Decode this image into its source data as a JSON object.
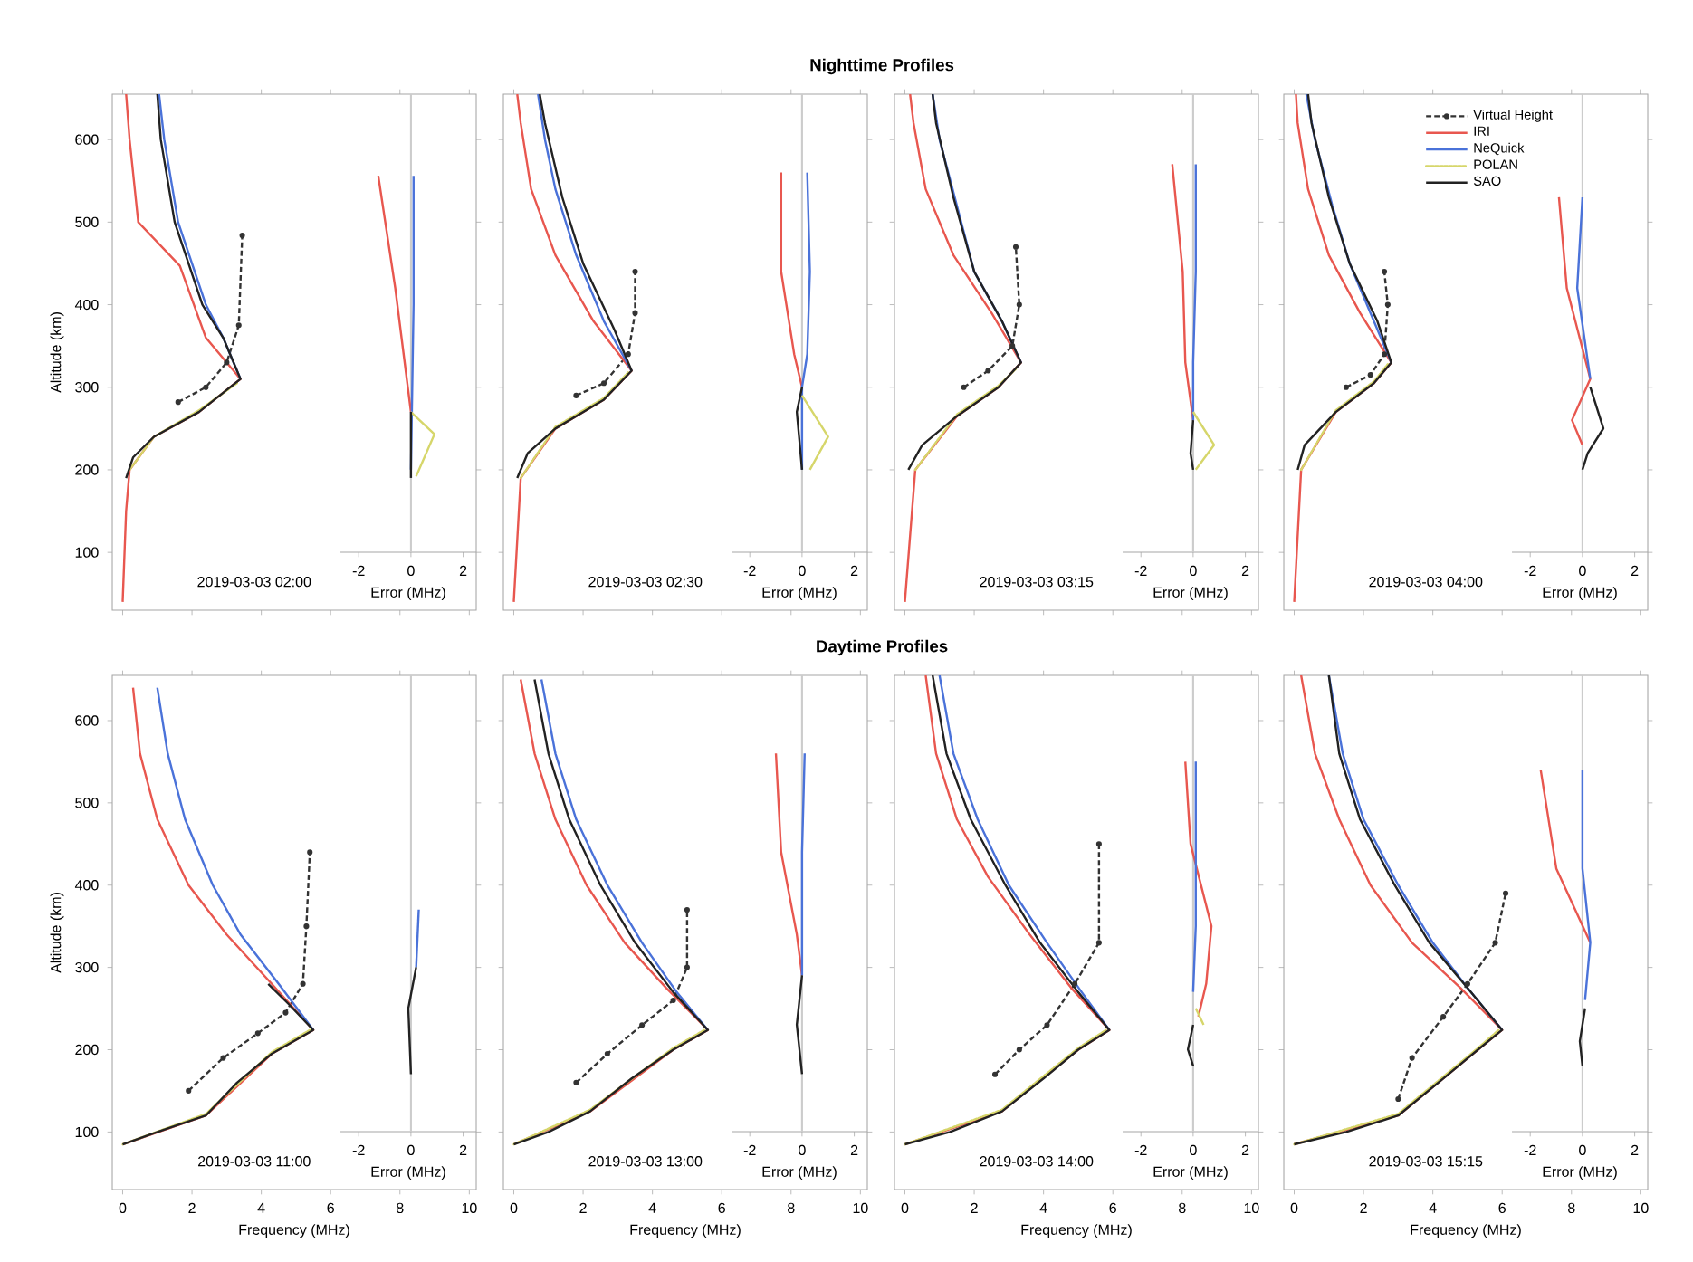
{
  "chart_data": [
    {
      "type": "line",
      "ylabel": "Altitude (km)",
      "xlim": [
        -0.3,
        10.2
      ],
      "ylim": [
        30,
        655
      ],
      "xticks": [
        0,
        2,
        4,
        6,
        8,
        10
      ],
      "yticks": [
        100,
        200,
        300,
        400,
        500,
        600
      ],
      "tick_labels": "y",
      "annotations": [
        "2019-03-03 02:00"
      ],
      "series": [
        {
          "color": "#333333",
          "line_style": "dashed",
          "marker": "circle",
          "x": [
            1.6,
            2.4,
            3.0,
            3.35,
            3.45
          ],
          "values": [
            282,
            300,
            330,
            375,
            484
          ]
        },
        {
          "color": "#e8574f",
          "x": [
            0.0,
            0.1,
            0.2,
            0.9,
            2.2,
            3.4,
            2.4,
            1.65,
            0.45,
            0.2,
            0.1
          ],
          "values": [
            40,
            150,
            200,
            240,
            270,
            310,
            360,
            447,
            500,
            600,
            655
          ]
        },
        {
          "color": "#4a72d9",
          "x": [
            3.4,
            2.9,
            2.4,
            1.6,
            1.2,
            1.05
          ],
          "values": [
            310,
            360,
            400,
            500,
            600,
            655
          ]
        },
        {
          "color": "#d6d66a",
          "line_style": "dotted",
          "x": [
            0.2,
            0.9,
            2.2,
            3.3
          ],
          "values": [
            200,
            240,
            272,
            305
          ]
        },
        {
          "color": "#222222",
          "x": [
            0.1,
            0.3,
            0.9,
            2.2,
            3.4,
            2.9,
            2.3,
            1.5,
            1.1,
            1.0
          ],
          "values": [
            190,
            215,
            240,
            270,
            310,
            360,
            400,
            500,
            600,
            655
          ]
        }
      ]
    },
    {
      "type": "line",
      "xlabel": "Error (MHz)",
      "xlim": [
        -2.7,
        2.5
      ],
      "ylim": [
        100,
        655
      ],
      "xticks": [
        -2,
        0,
        2
      ],
      "yticks": [
        100,
        200,
        300,
        400,
        500,
        600
      ],
      "tick_labels": "x",
      "ref_lines": [
        {
          "axis": "x",
          "value": 0,
          "color": "#cccccc"
        }
      ],
      "series": [
        {
          "color": "#e8574f",
          "x": [
            -1.25,
            -0.6,
            0.0
          ],
          "values": [
            556,
            420,
            270
          ]
        },
        {
          "color": "#4a72d9",
          "x": [
            0.1,
            0.1,
            0.0
          ],
          "values": [
            556,
            400,
            200
          ]
        },
        {
          "color": "#d6d66a",
          "x": [
            0.0,
            0.9,
            0.2
          ],
          "values": [
            270,
            243,
            192
          ]
        },
        {
          "color": "#222222",
          "x": [
            0.0,
            0.0
          ],
          "values": [
            270,
            190
          ]
        }
      ]
    },
    {
      "type": "line",
      "title": "Nighttime Profiles",
      "xlim": [
        -0.3,
        10.2
      ],
      "ylim": [
        30,
        655
      ],
      "xticks": [
        0,
        2,
        4,
        6,
        8,
        10
      ],
      "yticks": [
        100,
        200,
        300,
        400,
        500,
        600
      ],
      "tick_labels": false,
      "annotations": [
        "2019-03-03 02:30"
      ],
      "series": [
        {
          "color": "#333333",
          "line_style": "dashed",
          "marker": "circle",
          "x": [
            1.8,
            2.6,
            3.3,
            3.5,
            3.5
          ],
          "values": [
            290,
            305,
            340,
            390,
            440
          ]
        },
        {
          "color": "#e8574f",
          "x": [
            0.0,
            0.2,
            1.2,
            2.6,
            3.4,
            2.3,
            1.2,
            0.5,
            0.2,
            0.1
          ],
          "values": [
            40,
            190,
            250,
            285,
            320,
            380,
            460,
            540,
            620,
            655
          ]
        },
        {
          "color": "#4a72d9",
          "x": [
            3.4,
            2.6,
            1.8,
            1.2,
            0.9,
            0.7
          ],
          "values": [
            320,
            380,
            460,
            540,
            600,
            655
          ]
        },
        {
          "color": "#d6d66a",
          "line_style": "dotted",
          "x": [
            0.2,
            1.2,
            2.6,
            3.3
          ],
          "values": [
            190,
            252,
            287,
            318
          ]
        },
        {
          "color": "#222222",
          "x": [
            0.1,
            0.4,
            1.2,
            2.6,
            3.4,
            2.9,
            2.0,
            1.4,
            0.9,
            0.75
          ],
          "values": [
            190,
            220,
            250,
            285,
            320,
            370,
            450,
            530,
            620,
            655
          ]
        }
      ]
    },
    {
      "type": "line",
      "xlabel": "Error (MHz)",
      "xlim": [
        -2.7,
        2.5
      ],
      "ylim": [
        100,
        655
      ],
      "xticks": [
        -2,
        0,
        2
      ],
      "yticks": [
        100,
        200,
        300,
        400,
        500,
        600
      ],
      "tick_labels": "x",
      "ref_lines": [
        {
          "axis": "x",
          "value": 0,
          "color": "#cccccc"
        }
      ],
      "series": [
        {
          "color": "#e8574f",
          "x": [
            -0.8,
            -0.8,
            -0.3,
            0.0
          ],
          "values": [
            560,
            440,
            340,
            300
          ]
        },
        {
          "color": "#4a72d9",
          "x": [
            0.2,
            0.3,
            0.2,
            0.0,
            0.0
          ],
          "values": [
            560,
            440,
            340,
            300,
            200
          ]
        },
        {
          "color": "#d6d66a",
          "x": [
            0.0,
            1.0,
            0.3
          ],
          "values": [
            290,
            240,
            200
          ]
        },
        {
          "color": "#222222",
          "x": [
            0.0,
            -0.2,
            0.0
          ],
          "values": [
            300,
            270,
            200
          ]
        }
      ]
    },
    {
      "type": "line",
      "xlim": [
        -0.3,
        10.2
      ],
      "ylim": [
        30,
        655
      ],
      "xticks": [
        0,
        2,
        4,
        6,
        8,
        10
      ],
      "yticks": [
        100,
        200,
        300,
        400,
        500,
        600
      ],
      "tick_labels": false,
      "annotations": [
        "2019-03-03 03:15"
      ],
      "series": [
        {
          "color": "#333333",
          "line_style": "dashed",
          "marker": "circle",
          "x": [
            1.7,
            2.4,
            3.1,
            3.3,
            3.2
          ],
          "values": [
            300,
            320,
            350,
            400,
            470
          ]
        },
        {
          "color": "#e8574f",
          "x": [
            0.0,
            0.3,
            1.5,
            2.7,
            3.35,
            2.5,
            1.4,
            0.6,
            0.25,
            0.15
          ],
          "values": [
            40,
            200,
            265,
            300,
            330,
            390,
            460,
            540,
            620,
            655
          ]
        },
        {
          "color": "#4a72d9",
          "x": [
            3.35,
            2.8,
            2.0,
            1.5,
            1.0,
            0.8
          ],
          "values": [
            330,
            380,
            440,
            520,
            600,
            655
          ]
        },
        {
          "color": "#d6d66a",
          "line_style": "dotted",
          "x": [
            0.3,
            1.5,
            2.7,
            3.2
          ],
          "values": [
            200,
            267,
            302,
            322
          ]
        },
        {
          "color": "#222222",
          "x": [
            0.1,
            0.5,
            1.5,
            2.7,
            3.35,
            2.8,
            2.0,
            1.4,
            0.9,
            0.8
          ],
          "values": [
            200,
            230,
            265,
            300,
            330,
            380,
            440,
            530,
            620,
            655
          ]
        }
      ]
    },
    {
      "type": "line",
      "xlabel": "Error (MHz)",
      "xlim": [
        -2.7,
        2.5
      ],
      "ylim": [
        100,
        655
      ],
      "xticks": [
        -2,
        0,
        2
      ],
      "yticks": [
        100,
        200,
        300,
        400,
        500,
        600
      ],
      "tick_labels": "x",
      "ref_lines": [
        {
          "axis": "x",
          "value": 0,
          "color": "#cccccc"
        }
      ],
      "series": [
        {
          "color": "#e8574f",
          "x": [
            -0.8,
            -0.4,
            -0.3,
            0.0
          ],
          "values": [
            570,
            440,
            330,
            260
          ]
        },
        {
          "color": "#4a72d9",
          "x": [
            0.1,
            0.1,
            0.0,
            0.0
          ],
          "values": [
            570,
            440,
            330,
            260
          ]
        },
        {
          "color": "#d6d66a",
          "x": [
            0.0,
            0.8,
            0.1
          ],
          "values": [
            270,
            230,
            200
          ]
        },
        {
          "color": "#222222",
          "x": [
            0.0,
            -0.1,
            0.0
          ],
          "values": [
            260,
            220,
            200
          ]
        }
      ]
    },
    {
      "type": "line",
      "xlim": [
        -0.3,
        10.2
      ],
      "ylim": [
        30,
        655
      ],
      "xticks": [
        0,
        2,
        4,
        6,
        8,
        10
      ],
      "yticks": [
        100,
        200,
        300,
        400,
        500,
        600
      ],
      "tick_labels": false,
      "legend": "top right",
      "annotations": [
        "2019-03-03 04:00"
      ],
      "series": [
        {
          "name": "Virtual Height",
          "color": "#333333",
          "line_style": "dashed",
          "marker": "circle",
          "x": [
            1.5,
            2.2,
            2.6,
            2.7,
            2.6
          ],
          "values": [
            300,
            315,
            340,
            400,
            440
          ]
        },
        {
          "name": "IRI",
          "color": "#e8574f",
          "x": [
            0.0,
            0.2,
            1.2,
            2.3,
            2.8,
            1.9,
            1.0,
            0.4,
            0.1,
            0.05
          ],
          "values": [
            40,
            200,
            270,
            305,
            330,
            390,
            460,
            540,
            620,
            655
          ]
        },
        {
          "name": "NeQuick",
          "color": "#4a72d9",
          "x": [
            2.8,
            2.2,
            1.6,
            1.1,
            0.6,
            0.35
          ],
          "values": [
            330,
            390,
            450,
            520,
            600,
            655
          ]
        },
        {
          "name": "POLAN",
          "color": "#d6d66a",
          "line_style": "dotted",
          "x": [
            0.2,
            1.2,
            2.3,
            2.7
          ],
          "values": [
            200,
            272,
            307,
            328
          ]
        },
        {
          "name": "SAO",
          "color": "#222222",
          "x": [
            0.1,
            0.3,
            1.2,
            2.3,
            2.8,
            2.4,
            1.6,
            1.0,
            0.5,
            0.4
          ],
          "values": [
            200,
            230,
            270,
            305,
            330,
            380,
            450,
            530,
            620,
            655
          ]
        }
      ]
    },
    {
      "type": "line",
      "xlabel": "Error (MHz)",
      "xlim": [
        -2.7,
        2.5
      ],
      "ylim": [
        100,
        655
      ],
      "xticks": [
        -2,
        0,
        2
      ],
      "yticks": [
        100,
        200,
        300,
        400,
        500,
        600
      ],
      "tick_labels": "x",
      "ref_lines": [
        {
          "axis": "x",
          "value": 0,
          "color": "#cccccc"
        }
      ],
      "series": [
        {
          "color": "#e8574f",
          "x": [
            -0.9,
            -0.6,
            0.3,
            -0.4,
            0.0
          ],
          "values": [
            530,
            420,
            310,
            260,
            230
          ]
        },
        {
          "color": "#4a72d9",
          "x": [
            0.0,
            -0.2,
            0.3
          ],
          "values": [
            530,
            420,
            310
          ]
        },
        {
          "color": "#222222",
          "x": [
            0.3,
            0.8,
            0.2,
            0.0
          ],
          "values": [
            300,
            250,
            220,
            200
          ]
        }
      ]
    },
    {
      "type": "line",
      "xlabel": "Frequency (MHz)",
      "ylabel": "Altitude (km)",
      "xlim": [
        -0.3,
        10.2
      ],
      "ylim": [
        30,
        655
      ],
      "xticks": [
        0,
        2,
        4,
        6,
        8,
        10
      ],
      "yticks": [
        100,
        200,
        300,
        400,
        500,
        600
      ],
      "annotations": [
        "2019-03-03 11:00"
      ],
      "series": [
        {
          "color": "#333333",
          "line_style": "dashed",
          "marker": "circle",
          "x": [
            1.9,
            2.9,
            3.9,
            4.7,
            5.2,
            5.3,
            5.4
          ],
          "values": [
            150,
            190,
            220,
            245,
            280,
            350,
            440
          ]
        },
        {
          "color": "#e8574f",
          "x": [
            0.0,
            2.4,
            4.3,
            5.5,
            4.3,
            3.0,
            1.9,
            1.0,
            0.5,
            0.3
          ],
          "values": [
            85,
            120,
            195,
            224,
            280,
            340,
            400,
            480,
            560,
            640
          ]
        },
        {
          "color": "#4a72d9",
          "x": [
            5.5,
            4.5,
            3.4,
            2.6,
            1.8,
            1.3,
            1.0
          ],
          "values": [
            224,
            280,
            340,
            400,
            480,
            560,
            640
          ]
        },
        {
          "color": "#d6d66a",
          "line_style": "dotted",
          "x": [
            0.0,
            2.4,
            4.3,
            5.4
          ],
          "values": [
            85,
            122,
            197,
            224
          ]
        },
        {
          "color": "#222222",
          "x": [
            0.0,
            1.0,
            2.4,
            3.3,
            4.3,
            5.5,
            4.8,
            4.2
          ],
          "values": [
            85,
            100,
            120,
            160,
            195,
            224,
            255,
            280
          ]
        }
      ]
    },
    {
      "type": "line",
      "xlabel": "Error (MHz)",
      "xlim": [
        -2.7,
        2.5
      ],
      "ylim": [
        100,
        655
      ],
      "xticks": [
        -2,
        0,
        2
      ],
      "yticks": [
        100,
        200,
        300,
        400,
        500,
        600
      ],
      "tick_labels": "x",
      "ref_lines": [
        {
          "axis": "x",
          "value": 0,
          "color": "#cccccc"
        }
      ],
      "series": [
        {
          "color": "#4a72d9",
          "x": [
            0.3,
            0.2
          ],
          "values": [
            370,
            300
          ]
        },
        {
          "color": "#222222",
          "x": [
            0.2,
            -0.1,
            0.0
          ],
          "values": [
            300,
            250,
            170
          ]
        }
      ]
    },
    {
      "type": "line",
      "title": "Daytime Profiles",
      "xlabel": "Frequency (MHz)",
      "xlim": [
        -0.3,
        10.2
      ],
      "ylim": [
        30,
        655
      ],
      "xticks": [
        0,
        2,
        4,
        6,
        8,
        10
      ],
      "yticks": [
        100,
        200,
        300,
        400,
        500,
        600
      ],
      "tick_labels": "x",
      "annotations": [
        "2019-03-03 13:00"
      ],
      "series": [
        {
          "color": "#333333",
          "line_style": "dashed",
          "marker": "circle",
          "x": [
            1.8,
            2.7,
            3.7,
            4.6,
            5.0,
            5.0
          ],
          "values": [
            160,
            195,
            230,
            260,
            300,
            370
          ]
        },
        {
          "color": "#e8574f",
          "x": [
            0.0,
            2.2,
            4.6,
            5.6,
            4.4,
            3.2,
            2.1,
            1.2,
            0.6,
            0.2
          ],
          "values": [
            85,
            125,
            200,
            224,
            275,
            330,
            400,
            480,
            560,
            650
          ]
        },
        {
          "color": "#4a72d9",
          "x": [
            5.6,
            4.7,
            3.7,
            2.7,
            1.8,
            1.2,
            0.8
          ],
          "values": [
            224,
            270,
            330,
            400,
            480,
            560,
            650
          ]
        },
        {
          "color": "#d6d66a",
          "line_style": "dotted",
          "x": [
            0.0,
            2.2,
            4.6,
            5.5
          ],
          "values": [
            85,
            127,
            202,
            224
          ]
        },
        {
          "color": "#222222",
          "x": [
            0.0,
            1.0,
            2.2,
            3.4,
            4.6,
            5.6,
            4.6,
            3.5,
            2.5,
            1.6,
            1.0,
            0.6
          ],
          "values": [
            85,
            100,
            125,
            165,
            200,
            224,
            270,
            330,
            400,
            480,
            560,
            650
          ]
        }
      ]
    },
    {
      "type": "line",
      "xlabel": "Error (MHz)",
      "xlim": [
        -2.7,
        2.5
      ],
      "ylim": [
        100,
        655
      ],
      "xticks": [
        -2,
        0,
        2
      ],
      "yticks": [
        100,
        200,
        300,
        400,
        500,
        600
      ],
      "tick_labels": "x",
      "ref_lines": [
        {
          "axis": "x",
          "value": 0,
          "color": "#cccccc"
        }
      ],
      "series": [
        {
          "color": "#e8574f",
          "x": [
            -1.0,
            -0.8,
            -0.2,
            0.0
          ],
          "values": [
            560,
            440,
            340,
            290
          ]
        },
        {
          "color": "#4a72d9",
          "x": [
            0.1,
            0.0,
            0.0,
            0.0
          ],
          "values": [
            560,
            440,
            340,
            290
          ]
        },
        {
          "color": "#222222",
          "x": [
            0.0,
            -0.2,
            0.0
          ],
          "values": [
            290,
            230,
            170
          ]
        }
      ]
    },
    {
      "type": "line",
      "xlabel": "Frequency (MHz)",
      "xlim": [
        -0.3,
        10.2
      ],
      "ylim": [
        30,
        655
      ],
      "xticks": [
        0,
        2,
        4,
        6,
        8,
        10
      ],
      "yticks": [
        100,
        200,
        300,
        400,
        500,
        600
      ],
      "tick_labels": "x",
      "annotations": [
        "2019-03-03 14:00"
      ],
      "series": [
        {
          "color": "#333333",
          "line_style": "dashed",
          "marker": "circle",
          "x": [
            2.6,
            3.3,
            4.1,
            4.9,
            5.6,
            5.6
          ],
          "values": [
            170,
            200,
            230,
            280,
            330,
            450
          ]
        },
        {
          "color": "#e8574f",
          "x": [
            0.0,
            2.8,
            5.0,
            5.9,
            4.8,
            3.6,
            2.4,
            1.5,
            0.9,
            0.6
          ],
          "values": [
            85,
            125,
            200,
            224,
            275,
            340,
            410,
            480,
            560,
            655
          ]
        },
        {
          "color": "#4a72d9",
          "x": [
            5.9,
            5.1,
            4.1,
            3.0,
            2.1,
            1.4,
            1.0
          ],
          "values": [
            224,
            270,
            330,
            400,
            480,
            560,
            655
          ]
        },
        {
          "color": "#d6d66a",
          "line_style": "dotted",
          "x": [
            0.0,
            2.8,
            5.0,
            5.8
          ],
          "values": [
            85,
            127,
            202,
            224
          ]
        },
        {
          "color": "#222222",
          "x": [
            0.0,
            1.3,
            2.8,
            4.0,
            5.0,
            5.9,
            5.0,
            3.9,
            2.9,
            1.9,
            1.2,
            0.8
          ],
          "values": [
            85,
            100,
            125,
            165,
            200,
            224,
            270,
            330,
            400,
            480,
            560,
            655
          ]
        }
      ]
    },
    {
      "type": "line",
      "xlabel": "Error (MHz)",
      "xlim": [
        -2.7,
        2.5
      ],
      "ylim": [
        100,
        655
      ],
      "xticks": [
        -2,
        0,
        2
      ],
      "yticks": [
        100,
        200,
        300,
        400,
        500,
        600
      ],
      "tick_labels": "x",
      "ref_lines": [
        {
          "axis": "x",
          "value": 0,
          "color": "#cccccc"
        }
      ],
      "series": [
        {
          "color": "#e8574f",
          "x": [
            -0.3,
            -0.1,
            0.7,
            0.5,
            0.2
          ],
          "values": [
            550,
            450,
            350,
            280,
            240
          ]
        },
        {
          "color": "#4a72d9",
          "x": [
            0.1,
            0.1,
            0.1,
            0.0
          ],
          "values": [
            550,
            450,
            350,
            270
          ]
        },
        {
          "color": "#d6d66a",
          "x": [
            0.1,
            0.4
          ],
          "values": [
            250,
            230
          ]
        },
        {
          "color": "#222222",
          "x": [
            0.0,
            -0.2,
            0.0
          ],
          "values": [
            230,
            200,
            180
          ]
        }
      ]
    },
    {
      "type": "line",
      "xlabel": "Frequency (MHz)",
      "xlim": [
        -0.3,
        10.2
      ],
      "ylim": [
        30,
        655
      ],
      "xticks": [
        0,
        2,
        4,
        6,
        8,
        10
      ],
      "yticks": [
        100,
        200,
        300,
        400,
        500,
        600
      ],
      "tick_labels": "x",
      "annotations": [
        "2019-03-03 15:15"
      ],
      "series": [
        {
          "color": "#333333",
          "line_style": "dashed",
          "marker": "circle",
          "x": [
            3.0,
            3.4,
            4.3,
            5.0,
            5.8,
            6.1
          ],
          "values": [
            140,
            190,
            240,
            280,
            330,
            390
          ]
        },
        {
          "color": "#e8574f",
          "x": [
            0.0,
            3.0,
            5.3,
            6.0,
            4.8,
            3.4,
            2.2,
            1.3,
            0.6,
            0.2
          ],
          "values": [
            85,
            120,
            200,
            224,
            275,
            330,
            400,
            480,
            560,
            655
          ]
        },
        {
          "color": "#4a72d9",
          "x": [
            6.0,
            5.0,
            4.0,
            3.0,
            2.0,
            1.4,
            1.0
          ],
          "values": [
            224,
            275,
            330,
            400,
            480,
            560,
            655
          ]
        },
        {
          "color": "#d6d66a",
          "line_style": "dotted",
          "x": [
            0.0,
            3.0,
            5.3,
            5.9
          ],
          "values": [
            85,
            122,
            202,
            224
          ]
        },
        {
          "color": "#222222",
          "x": [
            0.0,
            1.5,
            3.0,
            4.3,
            5.3,
            6.0,
            5.0,
            3.9,
            2.9,
            1.9,
            1.3,
            1.0
          ],
          "values": [
            85,
            100,
            120,
            165,
            200,
            224,
            275,
            330,
            400,
            480,
            560,
            655
          ]
        }
      ]
    },
    {
      "type": "line",
      "xlabel": "Error (MHz)",
      "xlim": [
        -2.7,
        2.5
      ],
      "ylim": [
        100,
        655
      ],
      "xticks": [
        -2,
        0,
        2
      ],
      "yticks": [
        100,
        200,
        300,
        400,
        500,
        600
      ],
      "tick_labels": "x",
      "ref_lines": [
        {
          "axis": "x",
          "value": 0,
          "color": "#cccccc"
        }
      ],
      "series": [
        {
          "color": "#e8574f",
          "x": [
            -1.6,
            -1.0,
            0.3
          ],
          "values": [
            540,
            420,
            330
          ]
        },
        {
          "color": "#4a72d9",
          "x": [
            0.0,
            0.0,
            0.3,
            0.1
          ],
          "values": [
            540,
            420,
            330,
            260
          ]
        },
        {
          "color": "#222222",
          "x": [
            0.1,
            -0.1,
            0.0
          ],
          "values": [
            250,
            210,
            180
          ]
        }
      ]
    }
  ]
}
